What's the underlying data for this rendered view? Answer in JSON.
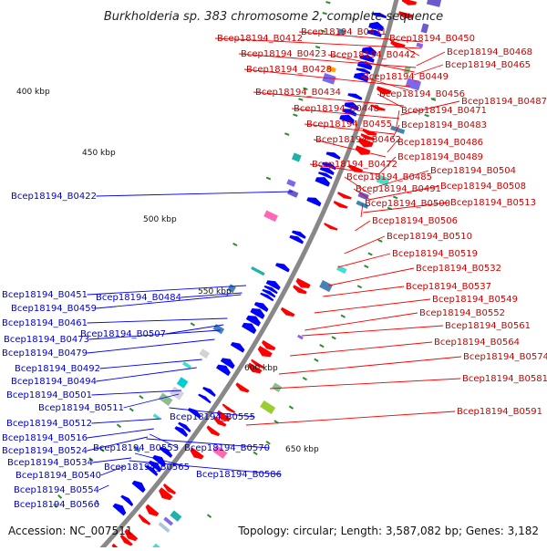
{
  "title": "Burkholderia sp. 383 chromosome 2, complete sequence",
  "footer": {
    "accession": "Accession: NC_007511",
    "topology": "Topology: circular; Length: 3,587,082 bp; Genes: 3,182"
  },
  "colors": {
    "forward": "#ff0000",
    "reverse": "#0000ff",
    "backbone": "#888888",
    "tick": "#2e8b2e"
  },
  "kbp_ticks": [
    "400 kbp",
    "450 kbp",
    "500 kbp",
    "550 kbp",
    "600 kbp",
    "650 kbp"
  ],
  "genes_forward": [
    "Bcep18194_B0412",
    "Bcep18194_B0423",
    "Bcep18194_B0428",
    "Bcep18194_B0431",
    "Bcep18194_B0434",
    "Bcep18194_B0442",
    "Bcep18194_B0448",
    "Bcep18194_B0449",
    "Bcep18194_B0450",
    "Bcep18194_B0455",
    "Bcep18194_B0456",
    "Bcep18194_B0462",
    "Bcep18194_B0465",
    "Bcep18194_B0468",
    "Bcep18194_B0471",
    "Bcep18194_B0472",
    "Bcep18194_B0483",
    "Bcep18194_B0485",
    "Bcep18194_B0486",
    "Bcep18194_B0487",
    "Bcep18194_B0489",
    "Bcep18194_B0491",
    "Bcep18194_B0500",
    "Bcep18194_B0504",
    "Bcep18194_B0506",
    "Bcep18194_B0508",
    "Bcep18194_B0510",
    "Bcep18194_B0513",
    "Bcep18194_B0519",
    "Bcep18194_B0532",
    "Bcep18194_B0537",
    "Bcep18194_B0549",
    "Bcep18194_B0552",
    "Bcep18194_B0561",
    "Bcep18194_B0564",
    "Bcep18194_B0574",
    "Bcep18194_B0581",
    "Bcep18194_B0591"
  ],
  "genes_reverse": [
    "Bcep18194_B0422",
    "Bcep18194_B0451",
    "Bcep18194_B0459",
    "Bcep18194_B0461",
    "Bcep18194_B0473",
    "Bcep18194_B0479",
    "Bcep18194_B0484",
    "Bcep18194_B0492",
    "Bcep18194_B0494",
    "Bcep18194_B0501",
    "Bcep18194_B0507",
    "Bcep18194_B0511",
    "Bcep18194_B0512",
    "Bcep18194_B0516",
    "Bcep18194_B0524",
    "Bcep18194_B0534",
    "Bcep18194_B0540",
    "Bcep18194_B0553",
    "Bcep18194_B0554",
    "Bcep18194_B0555",
    "Bcep18194_B0565",
    "Bcep18194_B0566",
    "Bcep18194_B0570",
    "Bcep18194_B0586"
  ]
}
